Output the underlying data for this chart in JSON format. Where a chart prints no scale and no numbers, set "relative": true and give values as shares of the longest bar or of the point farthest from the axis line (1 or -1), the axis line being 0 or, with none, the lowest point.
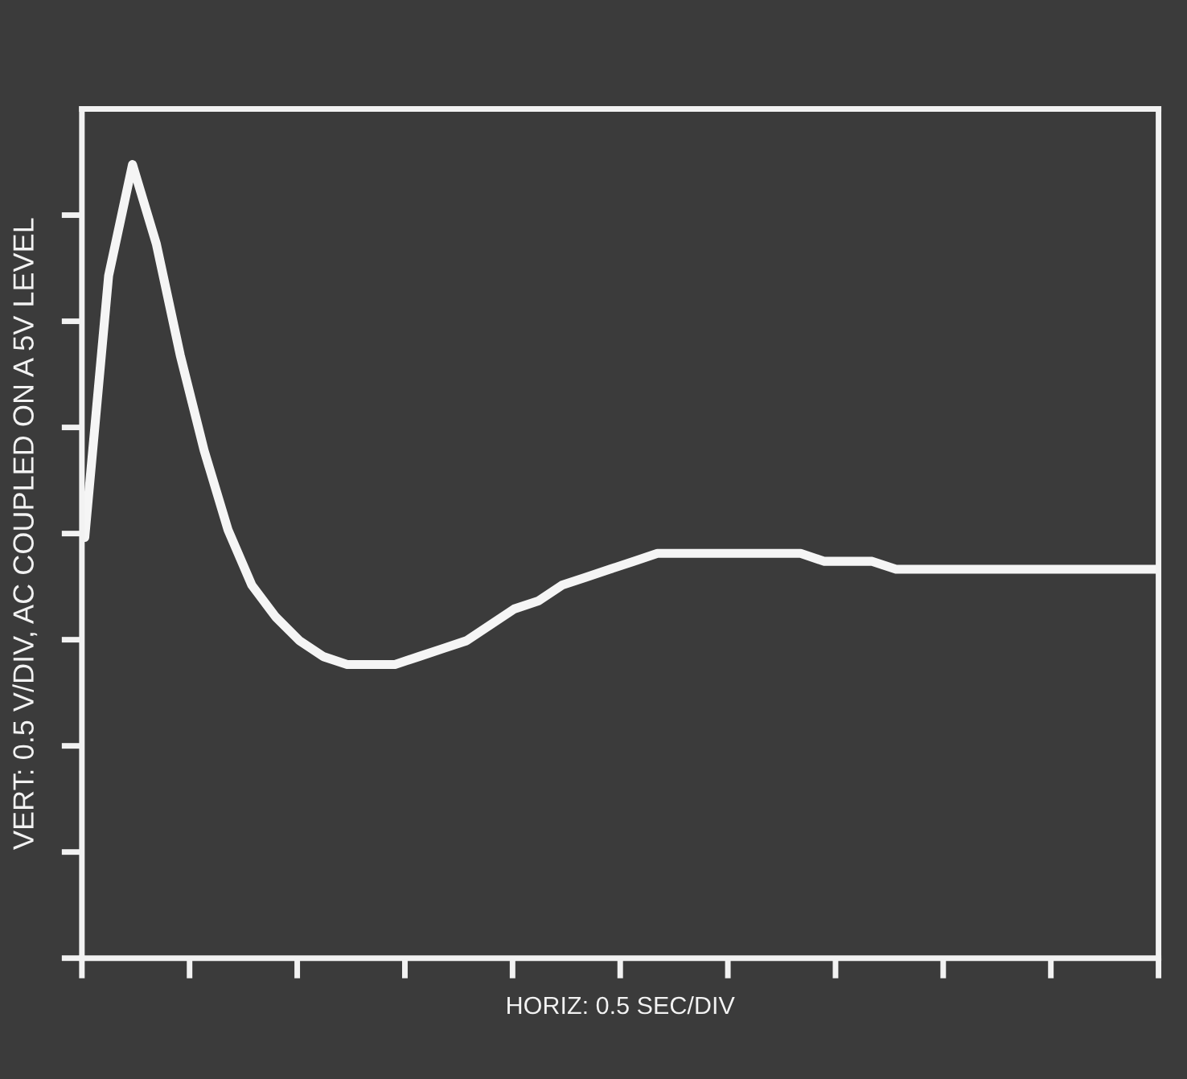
{
  "chart_data": {
    "type": "line",
    "relative": true,
    "xlabel": "HORIZ: 0.5 SEC/DIV",
    "ylabel": "VERT: 0.5 V/DIV, AC COUPLED ON A 5V LEVEL",
    "categories": [
      null,
      null,
      null,
      null,
      null,
      null,
      null,
      null,
      null,
      null,
      null,
      null,
      null,
      null,
      null,
      null,
      null,
      null,
      null,
      null,
      null,
      null,
      null,
      null,
      null,
      null,
      null,
      null,
      null,
      null,
      null,
      null,
      null,
      null,
      null,
      null,
      null,
      null,
      null,
      null,
      null,
      null,
      null,
      null,
      null,
      null
    ],
    "series": [
      {
        "color": "#f5f5f5",
        "values": [
          0.53,
          0.86,
          1.0,
          0.9,
          0.76,
          0.64,
          0.54,
          0.47,
          0.43,
          0.4,
          0.38,
          0.37,
          0.37,
          0.37,
          0.38,
          0.39,
          0.4,
          0.42,
          0.44,
          0.45,
          0.47,
          0.48,
          0.49,
          0.5,
          0.51,
          0.51,
          0.51,
          0.51,
          0.51,
          0.51,
          0.51,
          0.5,
          0.5,
          0.5,
          0.49,
          0.49,
          0.49,
          0.49,
          0.49,
          0.49,
          0.49,
          0.49,
          0.49,
          0.49,
          0.49,
          0.49
        ]
      }
    ]
  }
}
